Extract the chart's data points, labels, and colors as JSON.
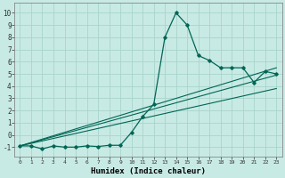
{
  "xlabel": "Humidex (Indice chaleur)",
  "ylabel": "",
  "bg_color": "#c8eae4",
  "grid_color": "#a8d4cc",
  "line_color": "#006655",
  "xlim": [
    -0.5,
    23.5
  ],
  "ylim": [
    -1.8,
    10.8
  ],
  "xticks": [
    0,
    1,
    2,
    3,
    4,
    5,
    6,
    7,
    8,
    9,
    10,
    11,
    12,
    13,
    14,
    15,
    16,
    17,
    18,
    19,
    20,
    21,
    22,
    23
  ],
  "yticks": [
    -1,
    0,
    1,
    2,
    3,
    4,
    5,
    6,
    7,
    8,
    9,
    10
  ],
  "main_x": [
    0,
    1,
    2,
    3,
    4,
    5,
    6,
    7,
    8,
    9,
    10,
    11,
    12,
    13,
    14,
    15,
    16,
    17,
    18,
    19,
    20,
    21,
    22,
    23
  ],
  "main_y": [
    -0.9,
    -0.9,
    -1.15,
    -0.9,
    -1.0,
    -1.0,
    -0.9,
    -0.95,
    -0.85,
    -0.85,
    0.2,
    1.5,
    2.5,
    8.0,
    10.0,
    9.0,
    6.5,
    6.1,
    5.5,
    5.5,
    5.5,
    4.3,
    5.2,
    5.0
  ],
  "reg_line1_x": [
    0,
    23
  ],
  "reg_line1_y": [
    -0.9,
    5.5
  ],
  "reg_line2_x": [
    0,
    23
  ],
  "reg_line2_y": [
    -0.9,
    4.9
  ],
  "reg_line3_x": [
    0,
    23
  ],
  "reg_line3_y": [
    -0.9,
    3.8
  ]
}
